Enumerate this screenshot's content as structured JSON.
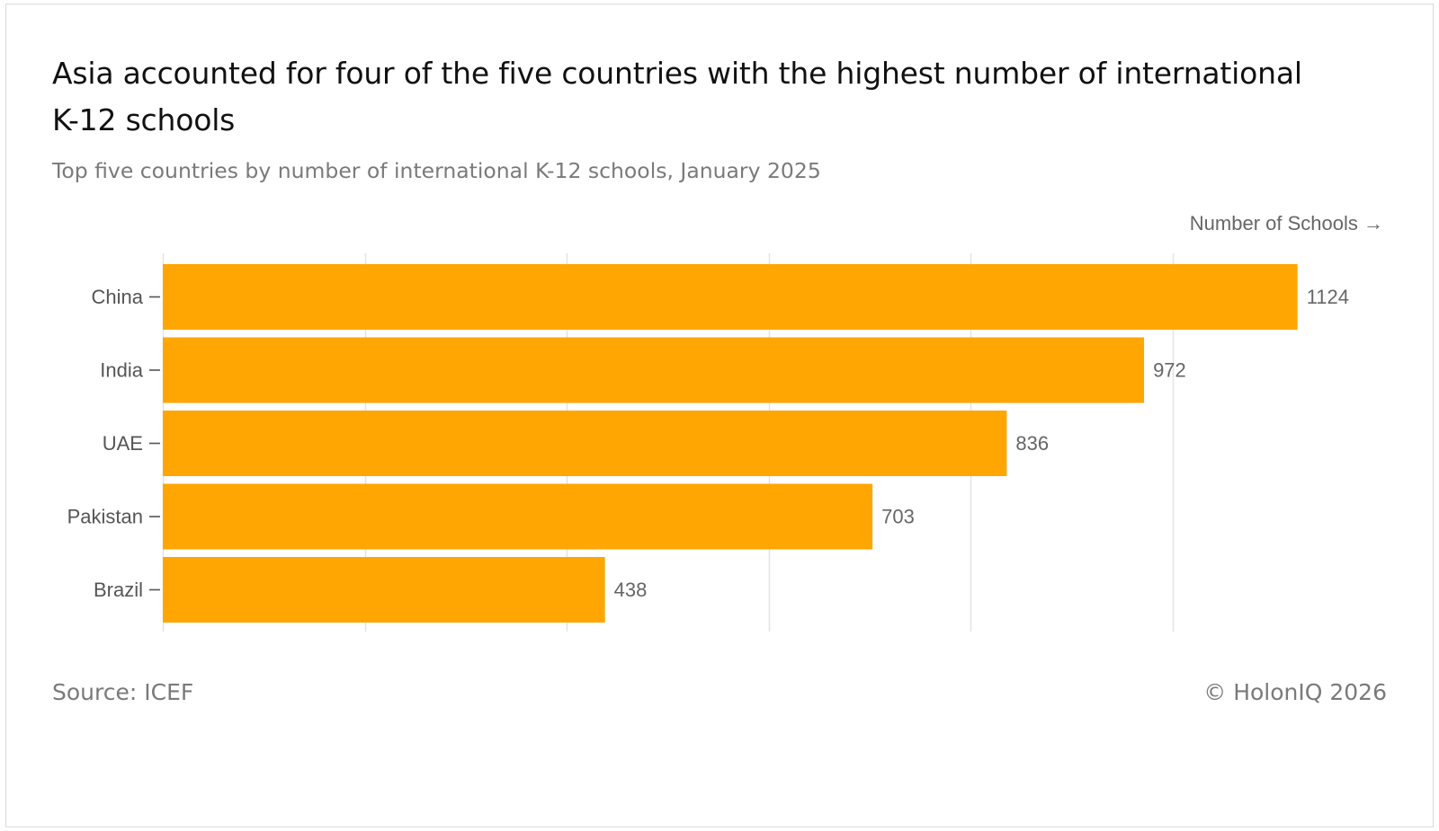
{
  "header": {
    "title": "Asia accounted for four of the five countries with the highest number of international K-12 schools",
    "subtitle": "Top five countries by number of international K-12 schools, January 2025"
  },
  "axis": {
    "x_caption": "Number of Schools →"
  },
  "footer": {
    "source": "Source: ICEF",
    "copyright": "© HolonIQ 2026"
  },
  "colors": {
    "bar": "#FFA602",
    "grid": "#e3e3e3",
    "tick_label": "#555555",
    "value_label": "#666666"
  },
  "chart_data": {
    "type": "bar",
    "orientation": "horizontal",
    "categories": [
      "China",
      "India",
      "UAE",
      "Pakistan",
      "Brazil"
    ],
    "values": [
      1124,
      972,
      836,
      703,
      438
    ],
    "title": "Asia accounted for four of the five countries with the highest number of international K-12 schools",
    "subtitle": "Top five countries by number of international K-12 schools, January 2025",
    "xlabel": "Number of Schools →",
    "ylabel": "",
    "xlim": [
      0,
      1200
    ],
    "grid": true,
    "data_labels": true,
    "legend": "none"
  }
}
